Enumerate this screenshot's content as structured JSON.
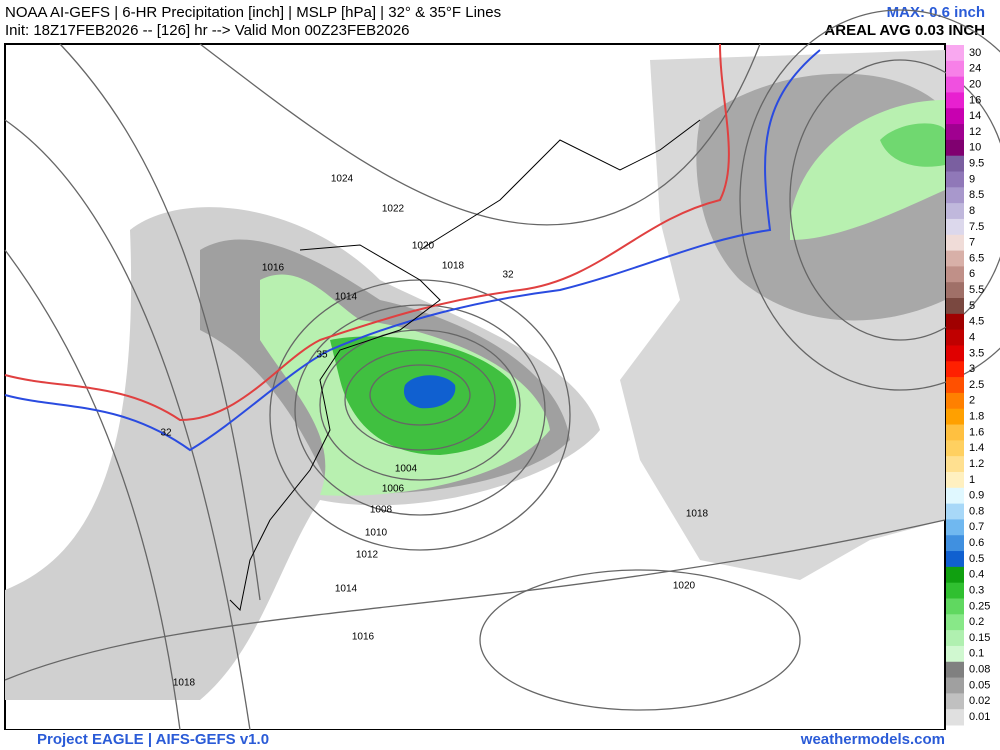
{
  "header": {
    "title": "NOAA AI-GEFS | 6-HR Precipitation [inch] | MSLP [hPa] | 32° & 35°F Lines",
    "init": "Init: 18Z17FEB2026 -- [126] hr --> Valid Mon 00Z23FEB2026",
    "max": "MAX: 0.6 inch",
    "areal": "AREAL AVG 0.03 INCH"
  },
  "colorbar": [
    {
      "label": "30",
      "color": "#f9a8f0"
    },
    {
      "label": "24",
      "color": "#f780e8"
    },
    {
      "label": "20",
      "color": "#f050e0"
    },
    {
      "label": "16",
      "color": "#e820d0"
    },
    {
      "label": "14",
      "color": "#c800b0"
    },
    {
      "label": "12",
      "color": "#a00090"
    },
    {
      "label": "10",
      "color": "#800070"
    },
    {
      "label": "9.5",
      "color": "#7a5fa0"
    },
    {
      "label": "9",
      "color": "#9078b8"
    },
    {
      "label": "8.5",
      "color": "#a898cc"
    },
    {
      "label": "8",
      "color": "#c0b8dc"
    },
    {
      "label": "7.5",
      "color": "#dcd8ec"
    },
    {
      "label": "7",
      "color": "#f0dcd8"
    },
    {
      "label": "6.5",
      "color": "#d8b0a8"
    },
    {
      "label": "6",
      "color": "#c09088"
    },
    {
      "label": "5.5",
      "color": "#a07068"
    },
    {
      "label": "5",
      "color": "#7a4840"
    },
    {
      "label": "4.5",
      "color": "#a00000"
    },
    {
      "label": "4",
      "color": "#c00000"
    },
    {
      "label": "3.5",
      "color": "#e00000"
    },
    {
      "label": "3",
      "color": "#ff2000"
    },
    {
      "label": "2.5",
      "color": "#ff5000"
    },
    {
      "label": "2",
      "color": "#ff8000"
    },
    {
      "label": "1.8",
      "color": "#ffa000"
    },
    {
      "label": "1.6",
      "color": "#ffc040"
    },
    {
      "label": "1.4",
      "color": "#ffd060"
    },
    {
      "label": "1.2",
      "color": "#ffe090"
    },
    {
      "label": "1",
      "color": "#fff0c0"
    },
    {
      "label": "0.9",
      "color": "#e0f8ff"
    },
    {
      "label": "0.8",
      "color": "#a8d8f8"
    },
    {
      "label": "0.7",
      "color": "#70b8f0"
    },
    {
      "label": "0.6",
      "color": "#4090e0"
    },
    {
      "label": "0.5",
      "color": "#1060d0"
    },
    {
      "label": "0.4",
      "color": "#10a010"
    },
    {
      "label": "0.3",
      "color": "#30c030"
    },
    {
      "label": "0.25",
      "color": "#60d860"
    },
    {
      "label": "0.2",
      "color": "#88e888"
    },
    {
      "label": "0.15",
      "color": "#b0f0b0"
    },
    {
      "label": "0.1",
      "color": "#d0f8d0"
    },
    {
      "label": "0.08",
      "color": "#808080"
    },
    {
      "label": "0.05",
      "color": "#a0a0a0"
    },
    {
      "label": "0.02",
      "color": "#c0c0c0"
    },
    {
      "label": "0.01",
      "color": "#e0e0e0"
    }
  ],
  "map": {
    "labels": [
      "1024",
      "1022",
      "1020",
      "1018",
      "32",
      "1016",
      "1014",
      "35",
      "32",
      "1004",
      "1006",
      "1008",
      "1010",
      "1012",
      "1014",
      "1016",
      "1018",
      "1018",
      "1020"
    ]
  },
  "footer": {
    "left": "Project EAGLE | AIFS-GEFS v1.0",
    "right": "weathermodels.com"
  }
}
